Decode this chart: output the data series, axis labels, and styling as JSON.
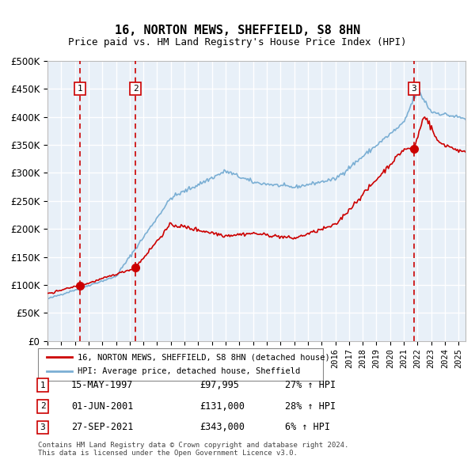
{
  "title": "16, NORTON MEWS, SHEFFIELD, S8 8HN",
  "subtitle": "Price paid vs. HM Land Registry's House Price Index (HPI)",
  "ylabel": "",
  "ylim": [
    0,
    500000
  ],
  "yticks": [
    0,
    50000,
    100000,
    150000,
    200000,
    250000,
    300000,
    350000,
    400000,
    450000,
    500000
  ],
  "xlim_start": 1995.0,
  "xlim_end": 2025.5,
  "background_color": "#ffffff",
  "plot_bg_color": "#e8f0f8",
  "grid_color": "#ffffff",
  "hpi_line_color": "#7bafd4",
  "price_line_color": "#cc0000",
  "sale_marker_color": "#cc0000",
  "dashed_line_color": "#cc0000",
  "legend_box_color": "#cc0000",
  "legend_box2_color": "#7bafd4",
  "sales": [
    {
      "label": 1,
      "date_str": "15-MAY-1997",
      "date_x": 1997.37,
      "price": 97995,
      "pct": "27%",
      "direction": "↑"
    },
    {
      "label": 2,
      "date_str": "01-JUN-2001",
      "date_x": 2001.42,
      "price": 131000,
      "pct": "28%",
      "direction": "↑"
    },
    {
      "label": 3,
      "date_str": "27-SEP-2021",
      "date_x": 2021.74,
      "price": 343000,
      "pct": "6%",
      "direction": "↑"
    }
  ],
  "footer": "Contains HM Land Registry data © Crown copyright and database right 2024.\nThis data is licensed under the Open Government Licence v3.0.",
  "legend_label1": "16, NORTON MEWS, SHEFFIELD, S8 8HN (detached house)",
  "legend_label2": "HPI: Average price, detached house, Sheffield"
}
